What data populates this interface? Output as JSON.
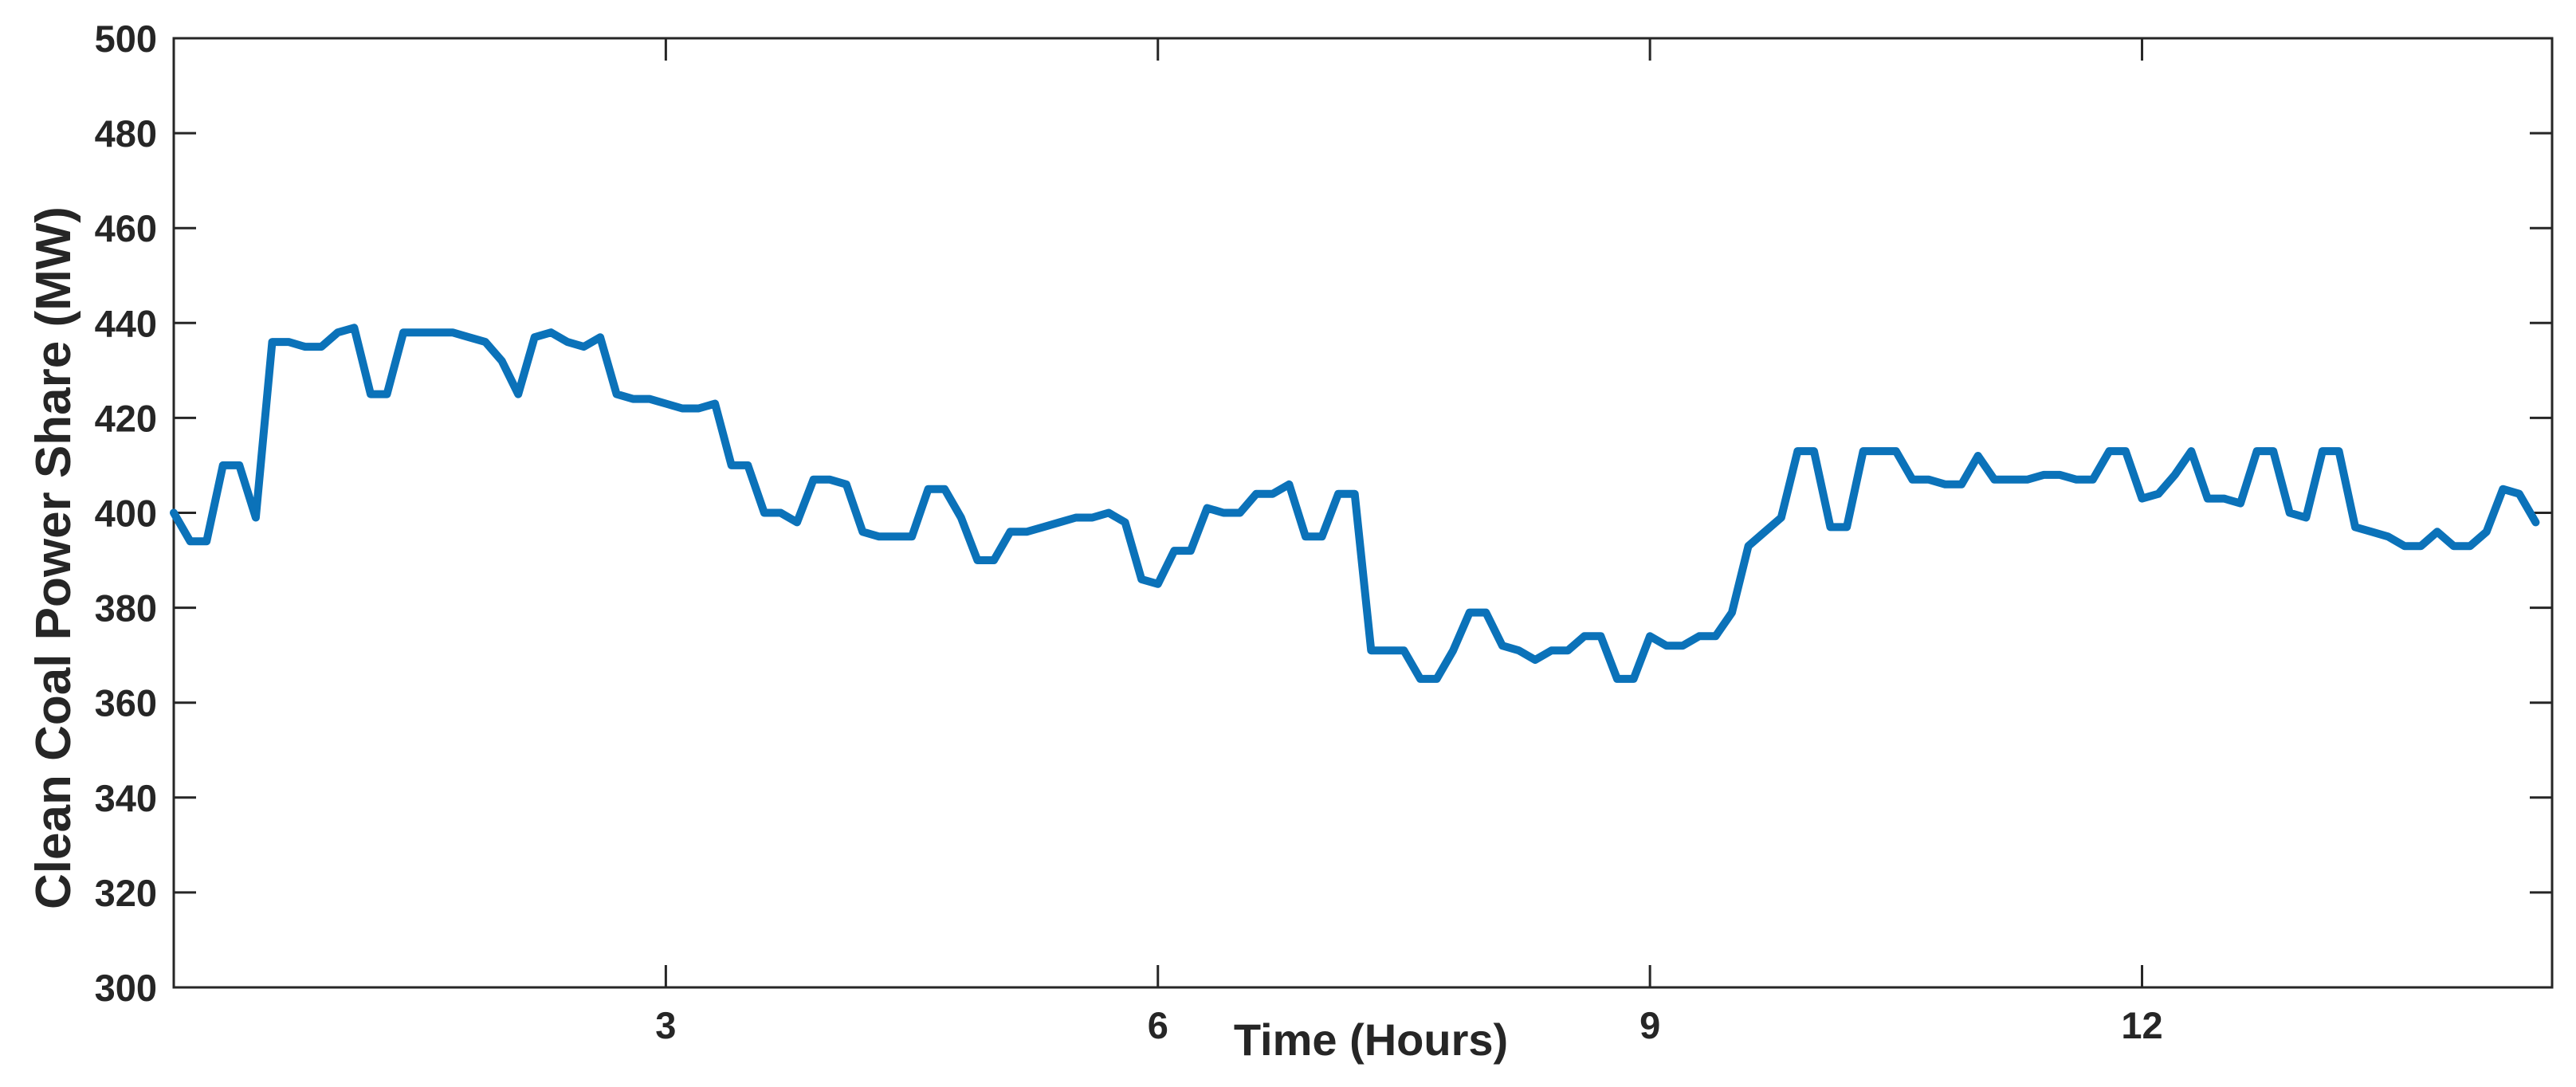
{
  "figure": {
    "background": "#ffffff"
  },
  "chart_data": {
    "type": "line",
    "title": "",
    "xlabel": "Time (Hours)",
    "ylabel": "Clean Coal Power Share (MW)",
    "xlim": [
      0,
      14.5
    ],
    "ylim": [
      300,
      500
    ],
    "xticks": [
      3,
      6,
      9,
      12
    ],
    "yticks": [
      300,
      320,
      340,
      360,
      380,
      400,
      420,
      440,
      460,
      480,
      500
    ],
    "grid": false,
    "legend": null,
    "line_color": "#0b72b9",
    "axis_color": "#262626",
    "line_width": 10,
    "x": [
      0.0,
      0.1,
      0.2,
      0.3,
      0.4,
      0.5,
      0.6,
      0.7,
      0.8,
      0.9,
      1.0,
      1.1,
      1.2,
      1.3,
      1.4,
      1.5,
      1.6,
      1.7,
      1.8,
      1.9,
      2.0,
      2.1,
      2.2,
      2.3,
      2.4,
      2.5,
      2.6,
      2.7,
      2.8,
      2.9,
      3.0,
      3.1,
      3.2,
      3.3,
      3.4,
      3.5,
      3.6,
      3.7,
      3.8,
      3.9,
      4.0,
      4.1,
      4.2,
      4.3,
      4.4,
      4.5,
      4.6,
      4.7,
      4.8,
      4.9,
      5.0,
      5.1,
      5.2,
      5.3,
      5.4,
      5.5,
      5.6,
      5.7,
      5.8,
      5.9,
      6.0,
      6.1,
      6.2,
      6.3,
      6.4,
      6.5,
      6.6,
      6.7,
      6.8,
      6.9,
      7.0,
      7.1,
      7.2,
      7.3,
      7.4,
      7.5,
      7.6,
      7.7,
      7.8,
      7.9,
      8.0,
      8.1,
      8.2,
      8.3,
      8.4,
      8.5,
      8.6,
      8.7,
      8.8,
      8.9,
      9.0,
      9.1,
      9.2,
      9.3,
      9.4,
      9.5,
      9.6,
      9.7,
      9.8,
      9.9,
      10.0,
      10.1,
      10.2,
      10.3,
      10.4,
      10.5,
      10.6,
      10.7,
      10.8,
      10.9,
      11.0,
      11.1,
      11.2,
      11.3,
      11.4,
      11.5,
      11.6,
      11.7,
      11.8,
      11.9,
      12.0,
      12.1,
      12.2,
      12.3,
      12.4,
      12.5,
      12.6,
      12.7,
      12.8,
      12.9,
      13.0,
      13.1,
      13.2,
      13.3,
      13.4,
      13.5,
      13.6,
      13.7,
      13.8,
      13.9,
      14.0,
      14.1,
      14.2,
      14.3,
      14.4
    ],
    "y": [
      400,
      394,
      394,
      410,
      410,
      399,
      436,
      436,
      435,
      435,
      438,
      439,
      425,
      425,
      438,
      438,
      438,
      438,
      437,
      436,
      432,
      425,
      437,
      438,
      436,
      435,
      437,
      425,
      424,
      424,
      423,
      422,
      422,
      423,
      410,
      410,
      400,
      400,
      398,
      407,
      407,
      406,
      396,
      395,
      395,
      395,
      405,
      405,
      399,
      390,
      390,
      396,
      396,
      397,
      398,
      399,
      399,
      400,
      398,
      386,
      385,
      392,
      392,
      401,
      400,
      400,
      404,
      404,
      406,
      395,
      395,
      404,
      404,
      371,
      371,
      371,
      365,
      365,
      371,
      379,
      379,
      372,
      371,
      369,
      371,
      371,
      374,
      374,
      365,
      365,
      374,
      372,
      372,
      374,
      374,
      379,
      393,
      396,
      399,
      413,
      413,
      397,
      397,
      413,
      413,
      413,
      407,
      407,
      406,
      406,
      412,
      407,
      407,
      407,
      408,
      408,
      407,
      407,
      413,
      413,
      403,
      404,
      408,
      413,
      403,
      403,
      402,
      413,
      413,
      400,
      399,
      413,
      413,
      397,
      396,
      395,
      393,
      393,
      396,
      393,
      393,
      396,
      405,
      404,
      398
    ]
  }
}
